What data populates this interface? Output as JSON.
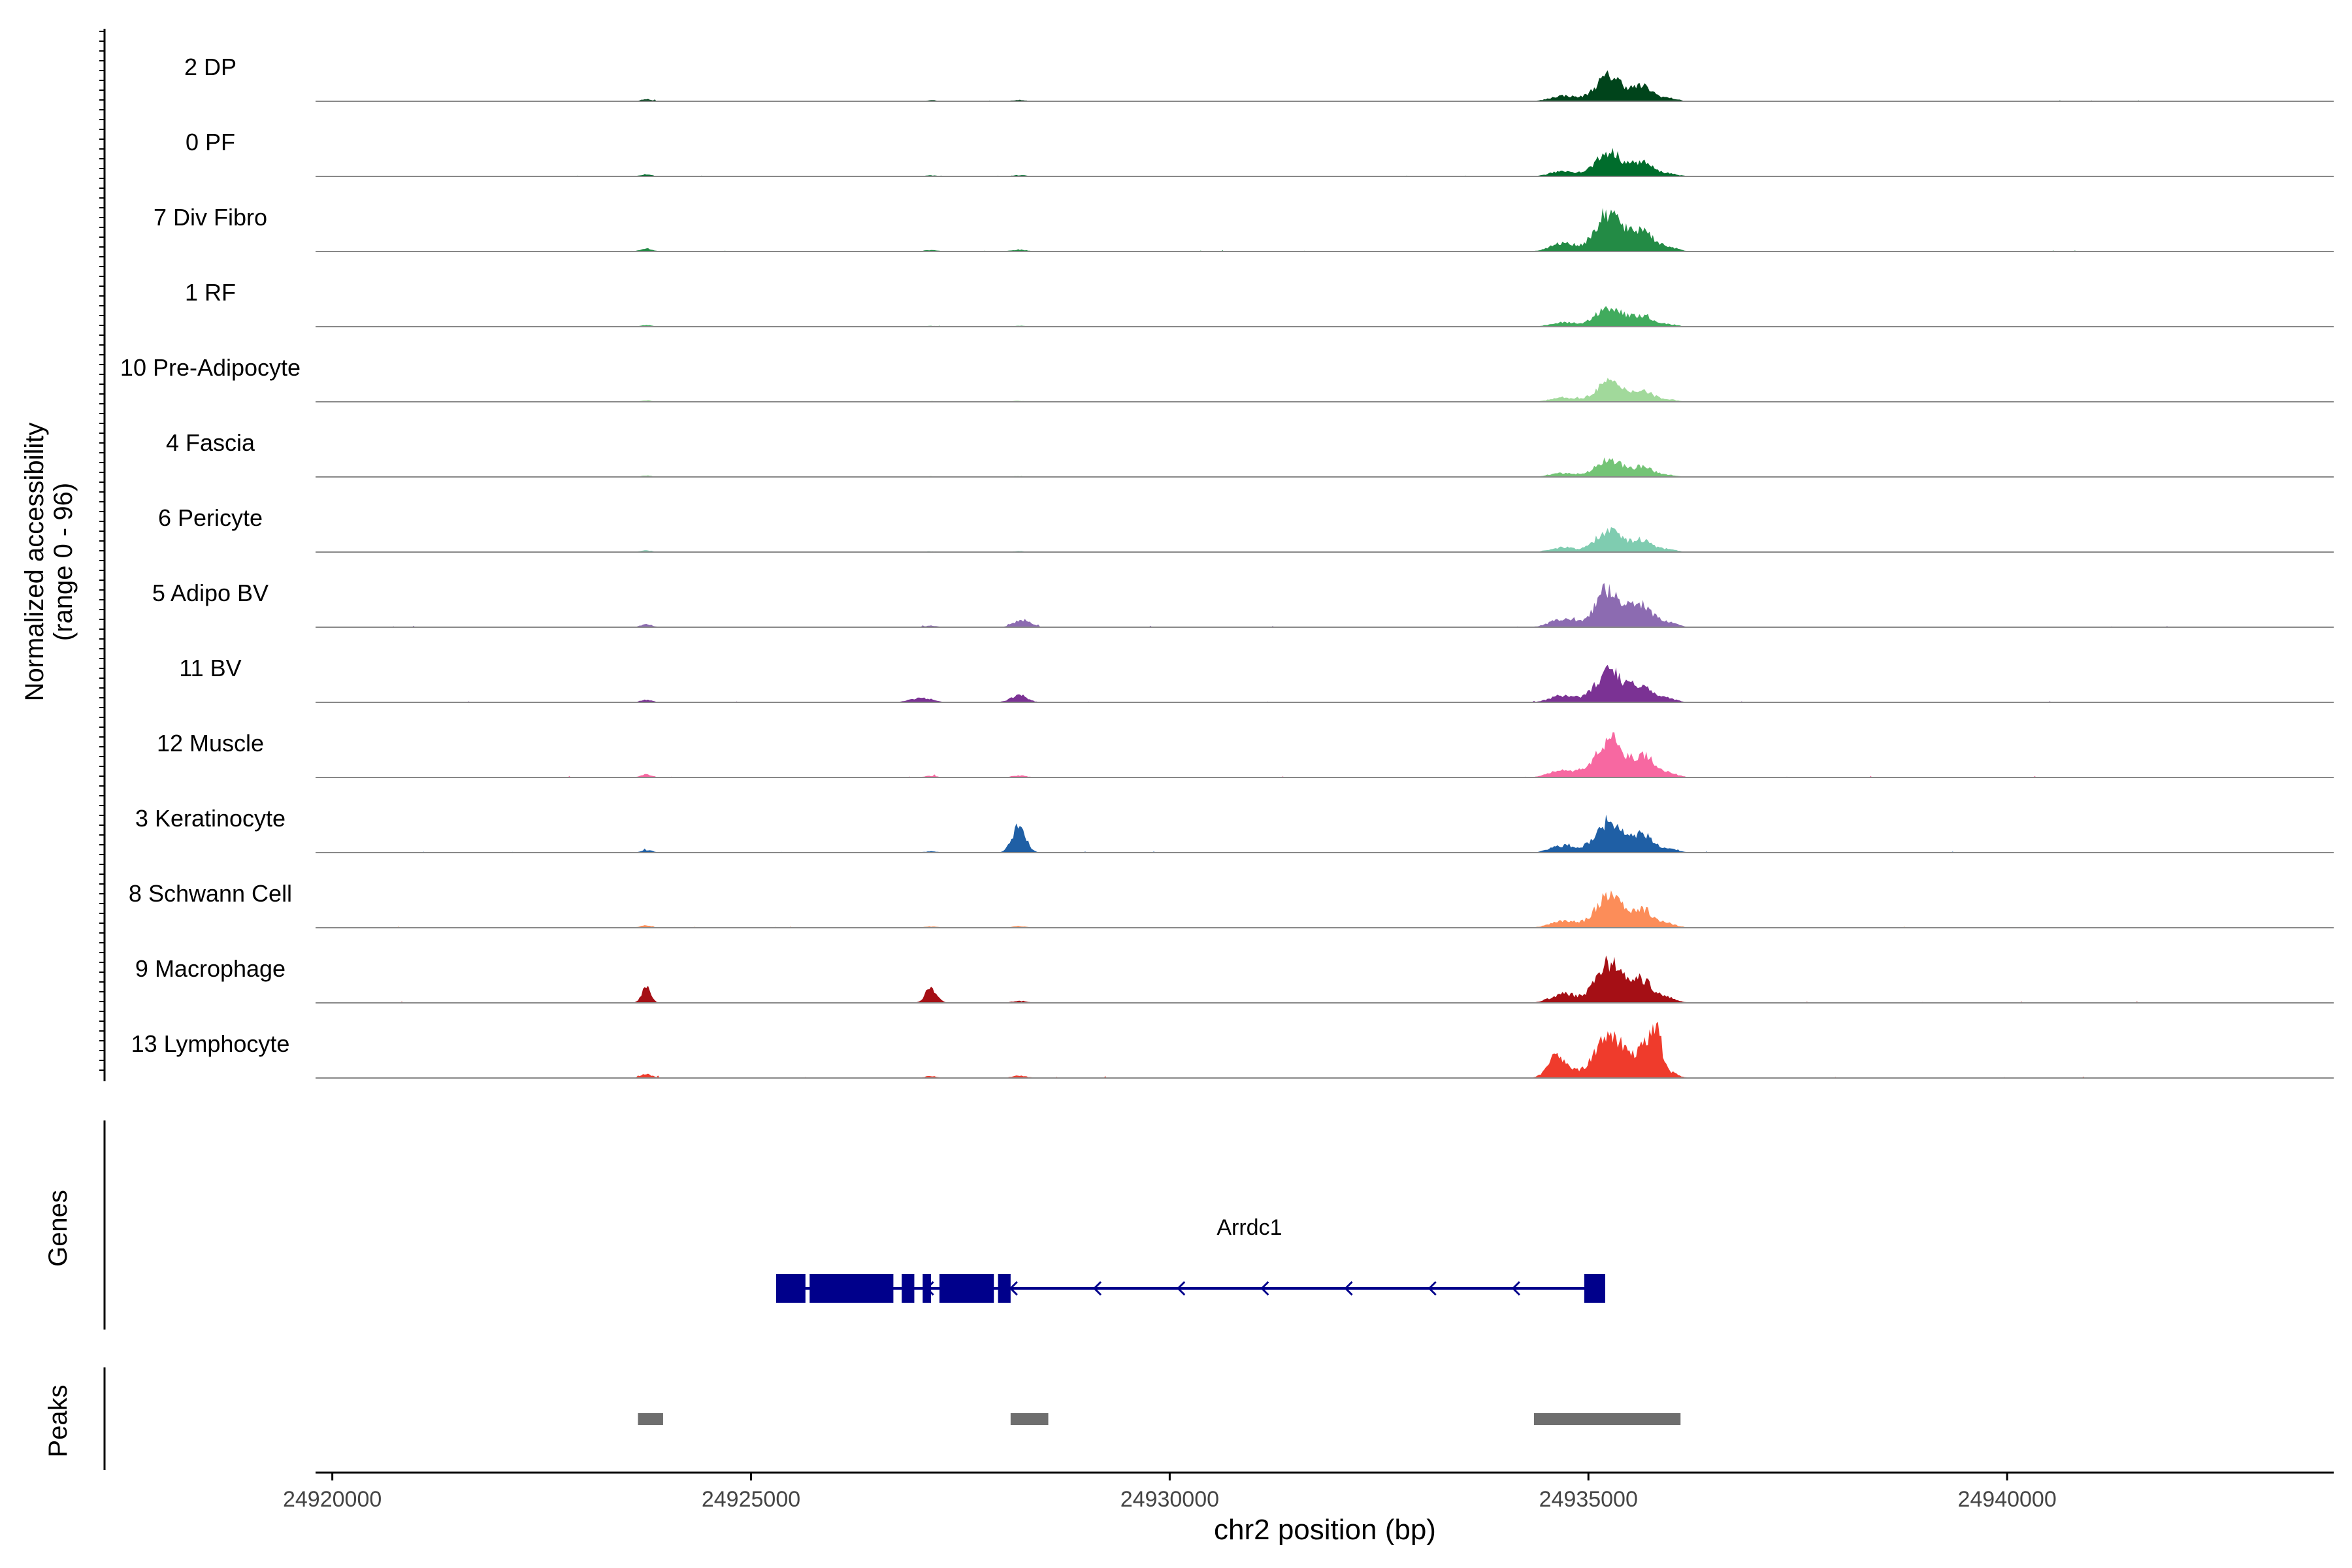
{
  "chart_data": {
    "type": "area",
    "subtype": "genome-browser coverage plot",
    "chromosome": "chr2",
    "xlim": [
      24919800,
      24943900
    ],
    "xlabel": "chr2 position (bp)",
    "x_ticks": [
      24920000,
      24925000,
      24930000,
      24935000,
      24940000
    ],
    "x_tick_labels": [
      "24920000",
      "24925000",
      "24930000",
      "24935000",
      "24940000"
    ],
    "ylabel": "Normalized accessibility",
    "ylabel_range": "(range 0 - 96)",
    "ylim": [
      0,
      96
    ],
    "groups": [
      {
        "name": "2 DP",
        "color": "#00441b",
        "peak_height": 22
      },
      {
        "name": "0 PF",
        "color": "#006d2c",
        "peak_height": 21
      },
      {
        "name": "7 Div Fibro",
        "color": "#238b45",
        "peak_height": 33
      },
      {
        "name": "1 RF",
        "color": "#41ab5d",
        "peak_height": 17
      },
      {
        "name": "10 Pre-Adipocyte",
        "color": "#a1d99b",
        "peak_height": 17
      },
      {
        "name": "4 Fascia",
        "color": "#74c476",
        "peak_height": 15
      },
      {
        "name": "6 Pericyte",
        "color": "#7fccb0",
        "peak_height": 18
      },
      {
        "name": "5 Adipo BV",
        "color": "#8c6bb1",
        "peak_height": 33
      },
      {
        "name": "11 BV",
        "color": "#7b3294",
        "peak_height": 27
      },
      {
        "name": "12 Muscle",
        "color": "#f768a1",
        "peak_height": 33
      },
      {
        "name": "3 Keratinocyte",
        "color": "#1f5fa5",
        "peak_height": 27
      },
      {
        "name": "8 Schwann Cell",
        "color": "#fc8d59",
        "peak_height": 28
      },
      {
        "name": "9 Macrophage",
        "color": "#a50f15",
        "peak_height": 35
      },
      {
        "name": "13 Lymphocyte",
        "color": "#ef3b2c",
        "peak_height": 40
      }
    ],
    "genes_label": "Genes",
    "genes": [
      {
        "name": "Arrdc1",
        "strand": "-",
        "start": 24925300,
        "end": 24935200,
        "color": "#00008b",
        "exons": [
          [
            24925300,
            24925650
          ],
          [
            24925700,
            24926700
          ],
          [
            24926800,
            24926950
          ],
          [
            24927050,
            24927150
          ],
          [
            24927250,
            24927900
          ],
          [
            24927950,
            24928100
          ],
          [
            24934950,
            24935200
          ]
        ]
      }
    ],
    "peaks_label": "Peaks",
    "peaks": [
      [
        24923650,
        24923950
      ],
      [
        24928100,
        24928550
      ],
      [
        24934350,
        24936100
      ]
    ],
    "peaks_color": "#6e6e6e"
  }
}
